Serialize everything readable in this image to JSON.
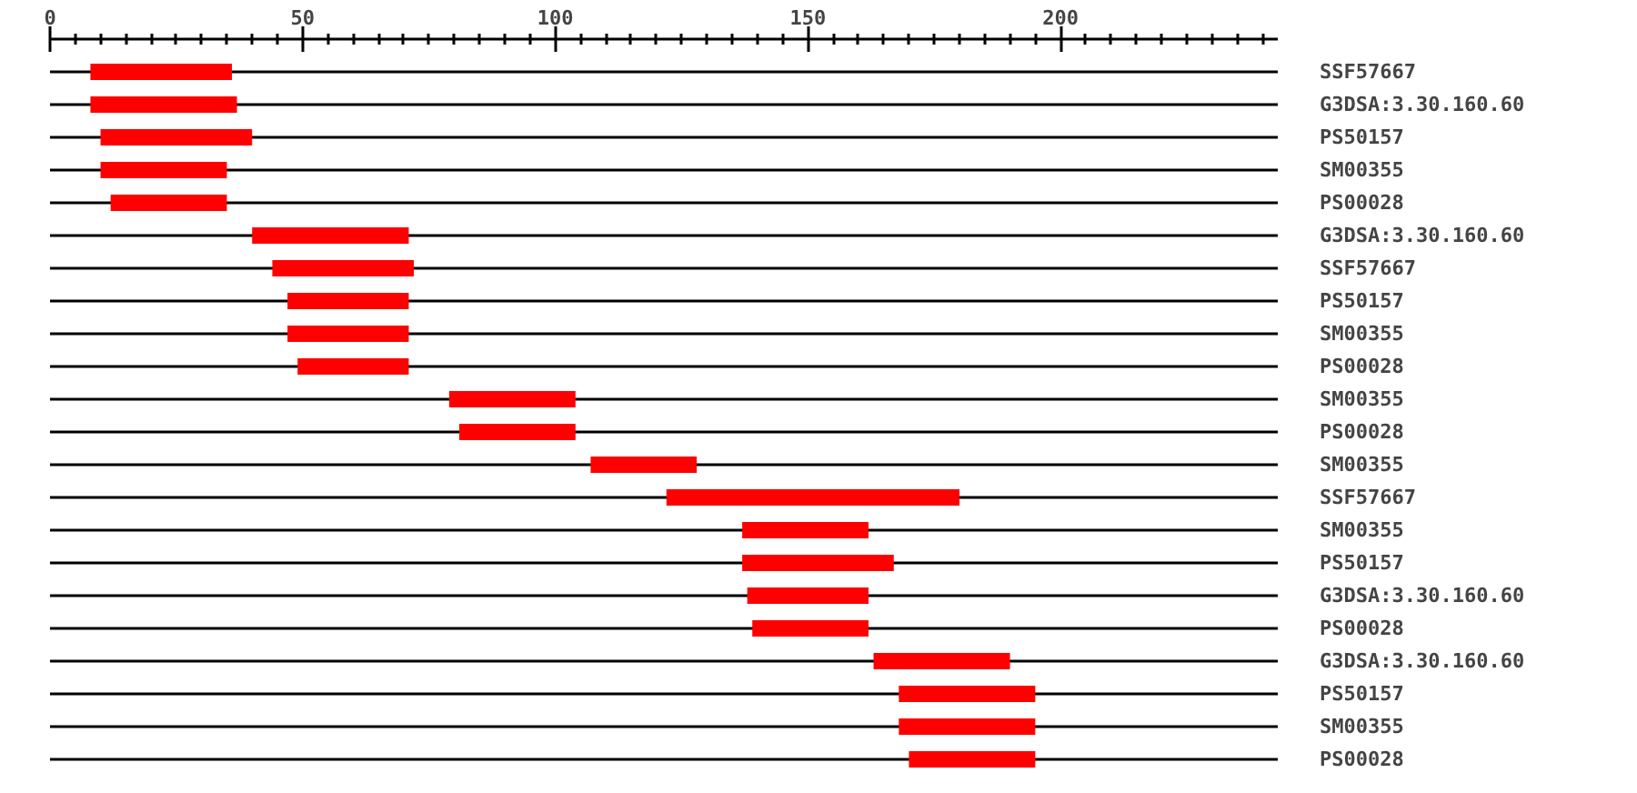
{
  "chart_data": {
    "type": "bar",
    "orientation": "horizontal",
    "categories": [
      "SSF57667",
      "G3DSA:3.30.160.60",
      "PS50157",
      "SM00355",
      "PS00028",
      "G3DSA:3.30.160.60",
      "SSF57667",
      "PS50157",
      "SM00355",
      "PS00028",
      "SM00355",
      "PS00028",
      "SM00355",
      "SSF57667",
      "SM00355",
      "PS50157",
      "G3DSA:3.30.160.60",
      "PS00028",
      "G3DSA:3.30.160.60",
      "PS50157",
      "SM00355",
      "PS00028"
    ],
    "base": [
      8,
      8,
      10,
      10,
      12,
      40,
      44,
      47,
      47,
      49,
      79,
      81,
      107,
      122,
      137,
      137,
      138,
      139,
      163,
      168,
      168,
      170
    ],
    "values": [
      28,
      29,
      30,
      25,
      23,
      31,
      28,
      24,
      24,
      22,
      25,
      23,
      21,
      58,
      25,
      30,
      24,
      23,
      27,
      27,
      27,
      25
    ],
    "color": "#ff0000",
    "xlim": [
      0,
      243
    ],
    "xticks": [
      0,
      {
        "value": 5,
        "label": null
      },
      {
        "value": 10,
        "label": null
      },
      {
        "value": 15,
        "label": null
      },
      {
        "value": 20,
        "label": null
      },
      {
        "value": 25,
        "label": null
      },
      {
        "value": 30,
        "label": null
      },
      {
        "value": 35,
        "label": null
      },
      {
        "value": 40,
        "label": null
      },
      {
        "value": 45,
        "label": null
      },
      50,
      {
        "value": 55,
        "label": null
      },
      {
        "value": 60,
        "label": null
      },
      {
        "value": 65,
        "label": null
      },
      {
        "value": 70,
        "label": null
      },
      {
        "value": 75,
        "label": null
      },
      {
        "value": 80,
        "label": null
      },
      {
        "value": 85,
        "label": null
      },
      {
        "value": 90,
        "label": null
      },
      {
        "value": 95,
        "label": null
      },
      100,
      {
        "value": 105,
        "label": null
      },
      {
        "value": 110,
        "label": null
      },
      {
        "value": 115,
        "label": null
      },
      {
        "value": 120,
        "label": null
      },
      {
        "value": 125,
        "label": null
      },
      {
        "value": 130,
        "label": null
      },
      {
        "value": 135,
        "label": null
      },
      {
        "value": 140,
        "label": null
      },
      {
        "value": 145,
        "label": null
      },
      150,
      {
        "value": 155,
        "label": null
      },
      {
        "value": 160,
        "label": null
      },
      {
        "value": 165,
        "label": null
      },
      {
        "value": 170,
        "label": null
      },
      {
        "value": 175,
        "label": null
      },
      {
        "value": 180,
        "label": null
      },
      {
        "value": 185,
        "label": null
      },
      {
        "value": 190,
        "label": null
      },
      {
        "value": 195,
        "label": null
      },
      200,
      {
        "value": 205,
        "label": null
      },
      {
        "value": 210,
        "label": null
      },
      {
        "value": 215,
        "label": null
      },
      {
        "value": 220,
        "label": null
      },
      {
        "value": 225,
        "label": null
      },
      {
        "value": 230,
        "label": null
      },
      {
        "value": 235,
        "label": null
      },
      {
        "value": 240,
        "label": null
      }
    ],
    "grid": "y"
  }
}
